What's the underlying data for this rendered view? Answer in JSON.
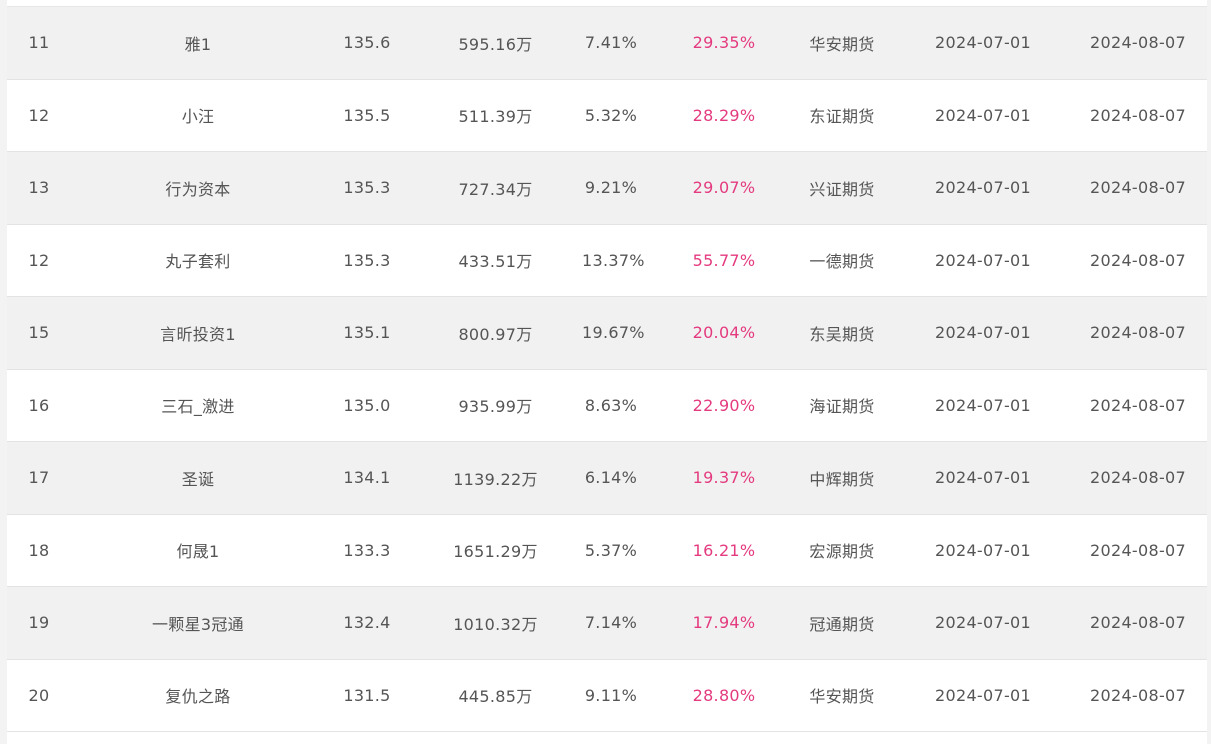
{
  "colors": {
    "drawdown_text": "#e43a7f",
    "row_odd_bg": "#f1f1f1",
    "row_even_bg": "#ffffff",
    "text": "#555555"
  },
  "rows": [
    {
      "rank": "11",
      "name": "雅1",
      "score": "135.6",
      "amount": "595.16万",
      "return_pct": "7.41%",
      "drawdown_pct": "29.35%",
      "broker": "华安期货",
      "start_date": "2024-07-01",
      "end_date": "2024-08-07"
    },
    {
      "rank": "12",
      "name": "小汪",
      "score": "135.5",
      "amount": "511.39万",
      "return_pct": "5.32%",
      "drawdown_pct": "28.29%",
      "broker": "东证期货",
      "start_date": "2024-07-01",
      "end_date": "2024-08-07"
    },
    {
      "rank": "13",
      "name": "行为资本",
      "score": "135.3",
      "amount": "727.34万",
      "return_pct": "9.21%",
      "drawdown_pct": "29.07%",
      "broker": "兴证期货",
      "start_date": "2024-07-01",
      "end_date": "2024-08-07"
    },
    {
      "rank": "12",
      "name": "丸子套利",
      "score": "135.3",
      "amount": "433.51万",
      "return_pct": "13.37%",
      "drawdown_pct": "55.77%",
      "broker": "一德期货",
      "start_date": "2024-07-01",
      "end_date": "2024-08-07"
    },
    {
      "rank": "15",
      "name": "言昕投资1",
      "score": "135.1",
      "amount": "800.97万",
      "return_pct": "19.67%",
      "drawdown_pct": "20.04%",
      "broker": "东吴期货",
      "start_date": "2024-07-01",
      "end_date": "2024-08-07"
    },
    {
      "rank": "16",
      "name": "三石_激进",
      "score": "135.0",
      "amount": "935.99万",
      "return_pct": "8.63%",
      "drawdown_pct": "22.90%",
      "broker": "海证期货",
      "start_date": "2024-07-01",
      "end_date": "2024-08-07"
    },
    {
      "rank": "17",
      "name": "圣诞",
      "score": "134.1",
      "amount": "1139.22万",
      "return_pct": "6.14%",
      "drawdown_pct": "19.37%",
      "broker": "中辉期货",
      "start_date": "2024-07-01",
      "end_date": "2024-08-07"
    },
    {
      "rank": "18",
      "name": "何晟1",
      "score": "133.3",
      "amount": "1651.29万",
      "return_pct": "5.37%",
      "drawdown_pct": "16.21%",
      "broker": "宏源期货",
      "start_date": "2024-07-01",
      "end_date": "2024-08-07"
    },
    {
      "rank": "19",
      "name": "一颗星3冠通",
      "score": "132.4",
      "amount": "1010.32万",
      "return_pct": "7.14%",
      "drawdown_pct": "17.94%",
      "broker": "冠通期货",
      "start_date": "2024-07-01",
      "end_date": "2024-08-07"
    },
    {
      "rank": "20",
      "name": "复仇之路",
      "score": "131.5",
      "amount": "445.85万",
      "return_pct": "9.11%",
      "drawdown_pct": "28.80%",
      "broker": "华安期货",
      "start_date": "2024-07-01",
      "end_date": "2024-08-07"
    }
  ]
}
